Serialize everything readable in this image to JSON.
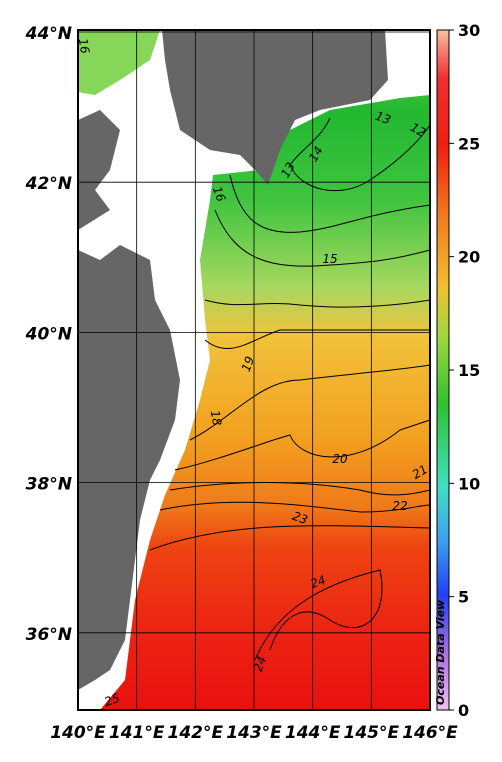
{
  "map": {
    "lat_labels": [
      "44°N",
      "42°N",
      "40°N",
      "38°N",
      "36°N"
    ],
    "lon_labels": [
      "140°E",
      "141°E",
      "142°E",
      "143°E",
      "144°E",
      "145°E",
      "146°E"
    ],
    "colorbar": {
      "range": [
        0,
        30
      ],
      "ticks": [
        0,
        5,
        10,
        15,
        20,
        25,
        30
      ]
    },
    "contour_labels": [
      "16",
      "13",
      "12",
      "13",
      "14",
      "16",
      "15",
      "19",
      "18",
      "20",
      "21",
      "22",
      "23",
      "24",
      "24",
      "25"
    ],
    "watermark": "Ocean Data View"
  }
}
